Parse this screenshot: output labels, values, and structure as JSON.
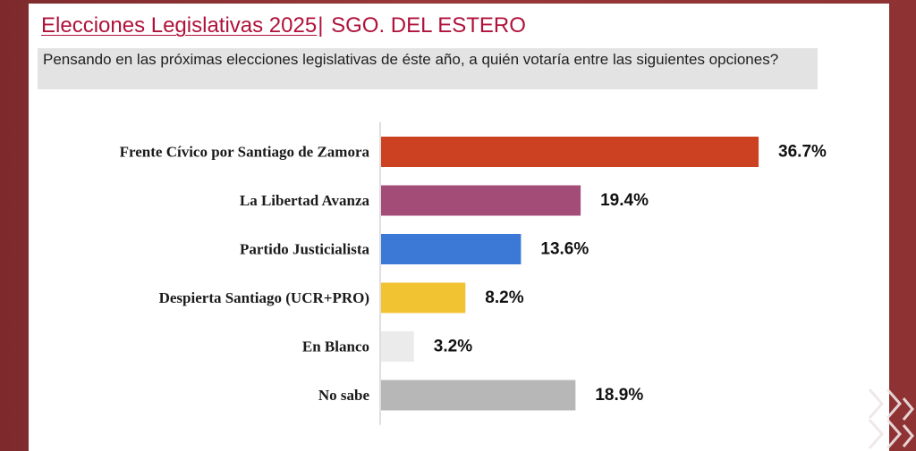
{
  "header": {
    "title_main": "Elecciones Legislativas 2025",
    "title_separator": "|",
    "title_region": " SGO. DEL ESTERO",
    "question": "Pensando en las próximas elecciones legislativas de éste año, a quién votaría entre las siguientes opciones?"
  },
  "chart_data": {
    "type": "bar",
    "orientation": "horizontal",
    "categories": [
      "Frente Cívico por Santiago de Zamora",
      "La Libertad Avanza",
      "Partido Justicialista",
      "Despierta Santiago (UCR+PRO)",
      "En Blanco",
      "No sabe"
    ],
    "values": [
      36.7,
      19.4,
      13.6,
      8.2,
      3.2,
      18.9
    ],
    "value_labels": [
      "36.7%",
      "19.4%",
      "13.6%",
      "8.2%",
      "3.2%",
      "18.9%"
    ],
    "colors": [
      "#cc4122",
      "#a34c77",
      "#3c78d6",
      "#f1c232",
      "#ebebeb",
      "#b7b7b7"
    ],
    "xlim": [
      0,
      40
    ],
    "grid": false,
    "legend": "none",
    "axis_line_color": "#bfbfbf"
  }
}
